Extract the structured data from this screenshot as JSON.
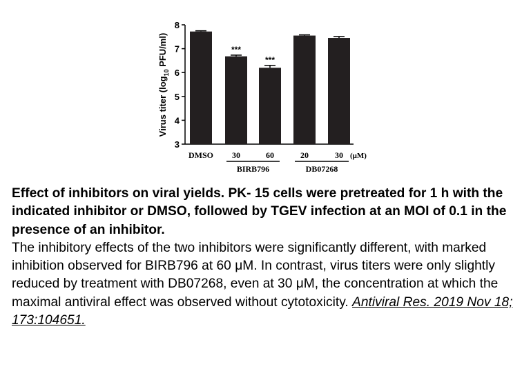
{
  "chart_data": {
    "type": "bar",
    "categories": [
      "DMSO",
      "30",
      "60",
      "20",
      "30"
    ],
    "values": [
      7.72,
      6.68,
      6.2,
      7.55,
      7.45
    ],
    "errors": [
      0.03,
      0.05,
      0.1,
      0.03,
      0.06
    ],
    "significance": [
      "",
      "***",
      "***",
      "",
      ""
    ],
    "unit_label": "(μM)",
    "groups": [
      {
        "label": "BIRB796",
        "first": 1,
        "last": 2
      },
      {
        "label": "DB07268",
        "first": 3,
        "last": 4
      }
    ],
    "ylabel_parts": [
      "Virus titer (log",
      "10",
      " PFU/ml)"
    ],
    "yticks": [
      3,
      4,
      5,
      6,
      7,
      8
    ],
    "ylim": [
      3,
      8
    ],
    "bar_color": "#231f20"
  },
  "caption": {
    "bold_text": "Effect of inhibitors on viral yields. PK- 15 cells were pretreated for 1 h with the indicated inhibitor or DMSO, followed by TGEV infection at an MOI of 0.1 in the presence of an inhibitor.",
    "body_text": "The inhibitory effects of the two inhibitors were significantly different, with marked inhibition observed for BIRB796 at 60 μM. In contrast, virus titers were only slightly reduced by treatment with DB07268, even at 30 μM, the concentration at which the maximal antiviral effect was observed without cytotoxicity.",
    "citation": "Antiviral Res. 2019 Nov 18; 173:104651."
  }
}
